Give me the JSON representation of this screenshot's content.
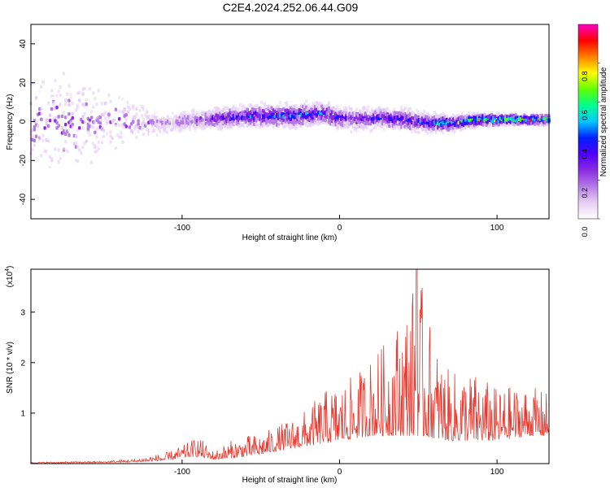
{
  "title": "C2E4.2024.252.06.44.G09",
  "colors": {
    "snr_line": "#e83a30",
    "spectrogram_background": "#ffffff",
    "colormap": [
      "#ffffff",
      "#e6cff5",
      "#b57be6",
      "#8a2be2",
      "#5000ff",
      "#0020ff",
      "#00c8ff",
      "#00ff90",
      "#60ff00",
      "#ffff00",
      "#ff8000",
      "#ff0000",
      "#ff00c0"
    ]
  },
  "chart_data": [
    {
      "type": "heatmap",
      "xlabel": "Height of straight line (km)",
      "ylabel": "Frequency (Hz)",
      "xlim": [
        -196,
        133
      ],
      "ylim": [
        -50,
        50
      ],
      "xticks": [
        -100,
        0,
        100
      ],
      "yticks": [
        -40,
        -20,
        0,
        20,
        40
      ],
      "colorbar": {
        "label": "Normalized spectral amplitude",
        "range": [
          0,
          1
        ],
        "ticks": [
          "0.0",
          "0.2",
          "0.4",
          "0.6",
          "0.8"
        ]
      },
      "ridge": {
        "description_values_x": [
          -196,
          -170,
          -150,
          -130,
          -110,
          -90,
          -70,
          -50,
          -30,
          -10,
          0,
          10,
          30,
          50,
          70,
          90,
          110,
          133
        ],
        "center_hz": [
          0,
          0,
          0,
          0,
          -1,
          1,
          2,
          3,
          3,
          4,
          2,
          1,
          2,
          0,
          -1,
          1,
          1,
          1
        ],
        "amplitude": [
          0.25,
          0.25,
          0.2,
          0.2,
          0.22,
          0.3,
          0.45,
          0.55,
          0.55,
          0.5,
          0.45,
          0.4,
          0.45,
          0.5,
          0.7,
          0.8,
          0.85,
          0.85
        ],
        "spread_hz": [
          50,
          50,
          45,
          25,
          12,
          10,
          9,
          9,
          9,
          9,
          10,
          10,
          9,
          8,
          5,
          4,
          3,
          3
        ]
      }
    },
    {
      "type": "line",
      "xlabel": "Height of straight line (km)",
      "ylabel": "SNR (10 * v/v)",
      "y_multiplier_label": "(x10",
      "y_multiplier_exp": "4",
      "xlim": [
        -196,
        133
      ],
      "ylim": [
        0,
        3.85
      ],
      "xticks": [
        -100,
        0,
        100
      ],
      "yticks": [
        1,
        2,
        3
      ],
      "envelope": {
        "x": [
          -196,
          -150,
          -130,
          -110,
          -100,
          -90,
          -80,
          -70,
          -60,
          -50,
          -40,
          -30,
          -20,
          -10,
          0,
          10,
          20,
          30,
          40,
          50,
          60,
          70,
          80,
          90,
          100,
          110,
          120,
          133
        ],
        "base": [
          0.01,
          0.02,
          0.03,
          0.06,
          0.12,
          0.14,
          0.08,
          0.1,
          0.14,
          0.18,
          0.25,
          0.3,
          0.35,
          0.4,
          0.45,
          0.5,
          0.55,
          0.55,
          0.55,
          0.55,
          0.5,
          0.45,
          0.45,
          0.45,
          0.45,
          0.5,
          0.55,
          0.55
        ],
        "peak": [
          0.03,
          0.05,
          0.1,
          0.22,
          0.35,
          0.55,
          0.25,
          0.45,
          0.55,
          0.6,
          0.75,
          0.9,
          1.1,
          1.45,
          1.6,
          1.75,
          2.15,
          2.45,
          3.05,
          3.85,
          2.45,
          1.8,
          1.9,
          1.75,
          1.5,
          1.55,
          1.55,
          1.4
        ]
      }
    }
  ]
}
